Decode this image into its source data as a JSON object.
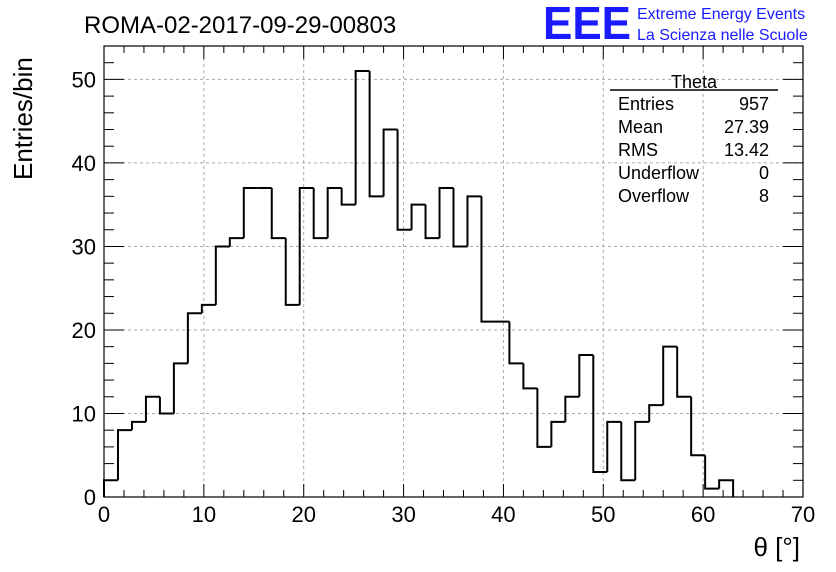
{
  "header": {
    "title": "ROMA-02-2017-09-29-00803",
    "logo": "EEE",
    "subtitle_line1": "Extreme Energy Events",
    "subtitle_line2": "La Scienza nelle Scuole"
  },
  "stats": {
    "name": "Theta",
    "rows": [
      {
        "label": "Entries",
        "value": "957"
      },
      {
        "label": "Mean",
        "value": "27.39"
      },
      {
        "label": "RMS",
        "value": "13.42"
      },
      {
        "label": "Underflow",
        "value": "0"
      },
      {
        "label": "Overflow",
        "value": "8"
      }
    ]
  },
  "colors": {
    "line": "#000000",
    "grid": "#aaaaaa",
    "brand": "#1a1aff",
    "background": "#ffffff"
  },
  "chart_data": {
    "type": "bar",
    "style": "step-histogram",
    "xlabel": "θ [°]",
    "ylabel": "Entries/bin",
    "xlim": [
      0,
      70
    ],
    "ylim": [
      0,
      54
    ],
    "x_ticks": [
      0,
      10,
      20,
      30,
      40,
      50,
      60,
      70
    ],
    "y_ticks": [
      0,
      10,
      20,
      30,
      40,
      50
    ],
    "grid": true,
    "bin_width": 1.4,
    "bin_edges_start": 0,
    "values": [
      2,
      8,
      9,
      12,
      10,
      16,
      22,
      23,
      30,
      31,
      37,
      37,
      31,
      23,
      37,
      31,
      37,
      35,
      51,
      36,
      44,
      32,
      35,
      31,
      37,
      30,
      36,
      21,
      21,
      16,
      13,
      6,
      9,
      12,
      17,
      3,
      9,
      2,
      9,
      11,
      18,
      12,
      5,
      1,
      2,
      0,
      0,
      0,
      0,
      0
    ]
  }
}
